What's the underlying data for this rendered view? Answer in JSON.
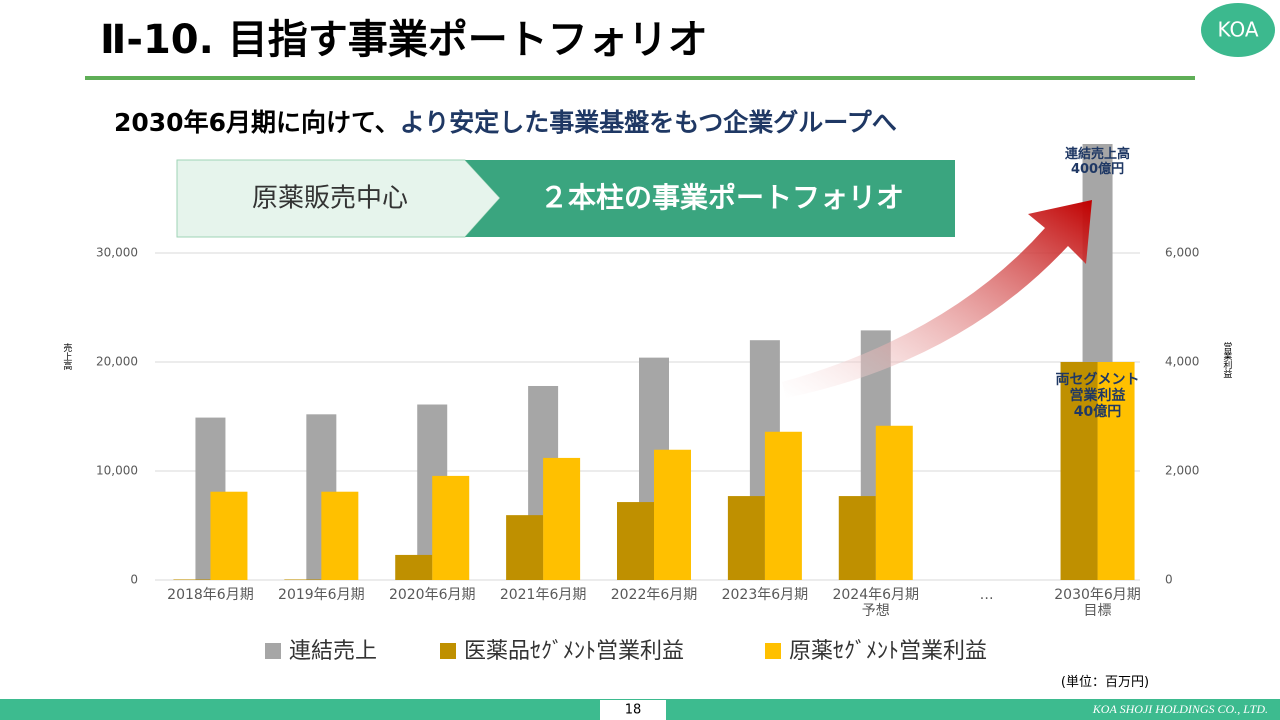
{
  "header": {
    "title": "Ⅱ-10.  目指す事業ポートフォリオ",
    "logo": "KOA",
    "subtitle_lead": "2030年6月期に向けて、",
    "subtitle_emphasis": "より安定した事業基盤をもつ企業グループへ",
    "banner_from": "原薬販売中心",
    "banner_to": "２本柱の事業ポートフォリオ"
  },
  "chart_data": {
    "type": "bar",
    "categories": [
      "2018年6月期",
      "2019年6月期",
      "2020年6月期",
      "2021年6月期",
      "2022年6月期",
      "2023年6月期",
      "2024年6月期\n予想",
      "…",
      "2030年6月期\n目標"
    ],
    "series": [
      {
        "name": "連結売上",
        "color": "#a6a6a6",
        "values": [
          14900,
          15200,
          16100,
          17800,
          20400,
          22000,
          22900,
          null,
          40000
        ]
      },
      {
        "name": "医薬品ｾｸﾞﾒﾝﾄ営業利益",
        "color": "#bf9000",
        "axis": "y2",
        "values": [
          10,
          10,
          460,
          1190,
          1430,
          1540,
          1540,
          null,
          4000
        ]
      },
      {
        "name": "原薬ｾｸﾞﾒﾝﾄ営業利益",
        "color": "#ffc000",
        "axis": "y2",
        "values": [
          1620,
          1620,
          1910,
          2240,
          2390,
          2720,
          2830,
          null,
          4000
        ]
      }
    ],
    "ylim": [
      0,
      40000
    ],
    "yticks": [
      0,
      {
        "value": 10000,
        "label": "10,000"
      },
      {
        "value": 20000,
        "label": "20,000"
      },
      {
        "value": 30000,
        "label": "30,000"
      }
    ],
    "y2lim": [
      0,
      8000
    ],
    "y2ticks": [
      0,
      {
        "value": 2000,
        "label": "2,000"
      },
      {
        "value": 4000,
        "label": "4,000"
      },
      {
        "value": 6000,
        "label": "6,000"
      }
    ],
    "ylabel": "売上高",
    "y2label": "営業利益",
    "grid": true,
    "legend": "bottom",
    "annotations": [
      "連結売上高\n400億円",
      "両セグメント\n営業利益\n40億円"
    ],
    "unit_note": "(単位：百万円)"
  },
  "footer": {
    "page": "18",
    "company": "KOA SHOJI HOLDINGS CO., LTD."
  }
}
